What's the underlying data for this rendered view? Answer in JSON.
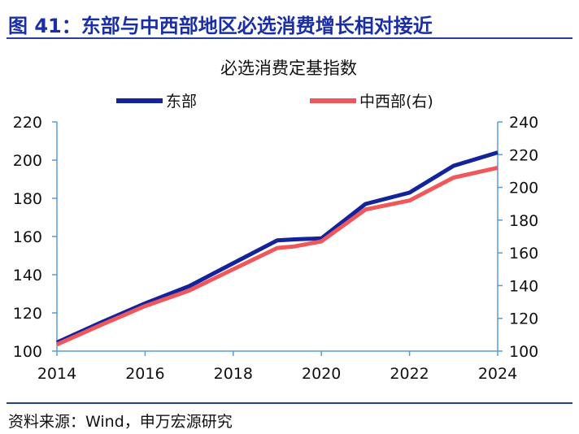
{
  "figure": {
    "title": "图 41：东部与中西部地区必选消费增长相对接近",
    "source": "资料来源：Wind，申万宏源研究"
  },
  "chart_data": {
    "type": "line",
    "title": "必选消费定基指数",
    "legend_position": "top",
    "grid": false,
    "x_ticks": [
      "2014",
      "2016",
      "2018",
      "2020",
      "2022",
      "2024"
    ],
    "xlim": [
      2014,
      2024
    ],
    "ylim_left": [
      100,
      220
    ],
    "yticks_left": [
      100,
      120,
      140,
      160,
      180,
      200,
      220
    ],
    "ylim_right": [
      100,
      240
    ],
    "yticks_right": [
      100,
      120,
      140,
      160,
      180,
      200,
      220,
      240
    ],
    "series": [
      {
        "name": "东部",
        "axis": "left",
        "color": "#12239b",
        "x": [
          2014.0,
          2015.0,
          2016.0,
          2017.0,
          2018.0,
          2019.0,
          2019.4,
          2020.0,
          2021.0,
          2022.0,
          2023.0,
          2024.0
        ],
        "y": [
          104.5,
          115,
          125,
          134,
          146,
          158,
          158.5,
          159,
          177,
          183,
          197,
          204
        ]
      },
      {
        "name": "中西部(右)",
        "axis": "right",
        "color": "#f0575a",
        "x": [
          2014.0,
          2015.0,
          2016.0,
          2017.0,
          2018.0,
          2019.0,
          2019.4,
          2020.0,
          2021.0,
          2022.0,
          2023.0,
          2024.0
        ],
        "y": [
          104,
          116,
          127.5,
          137,
          150,
          163,
          164,
          167,
          186.5,
          192,
          206,
          212
        ]
      }
    ]
  }
}
